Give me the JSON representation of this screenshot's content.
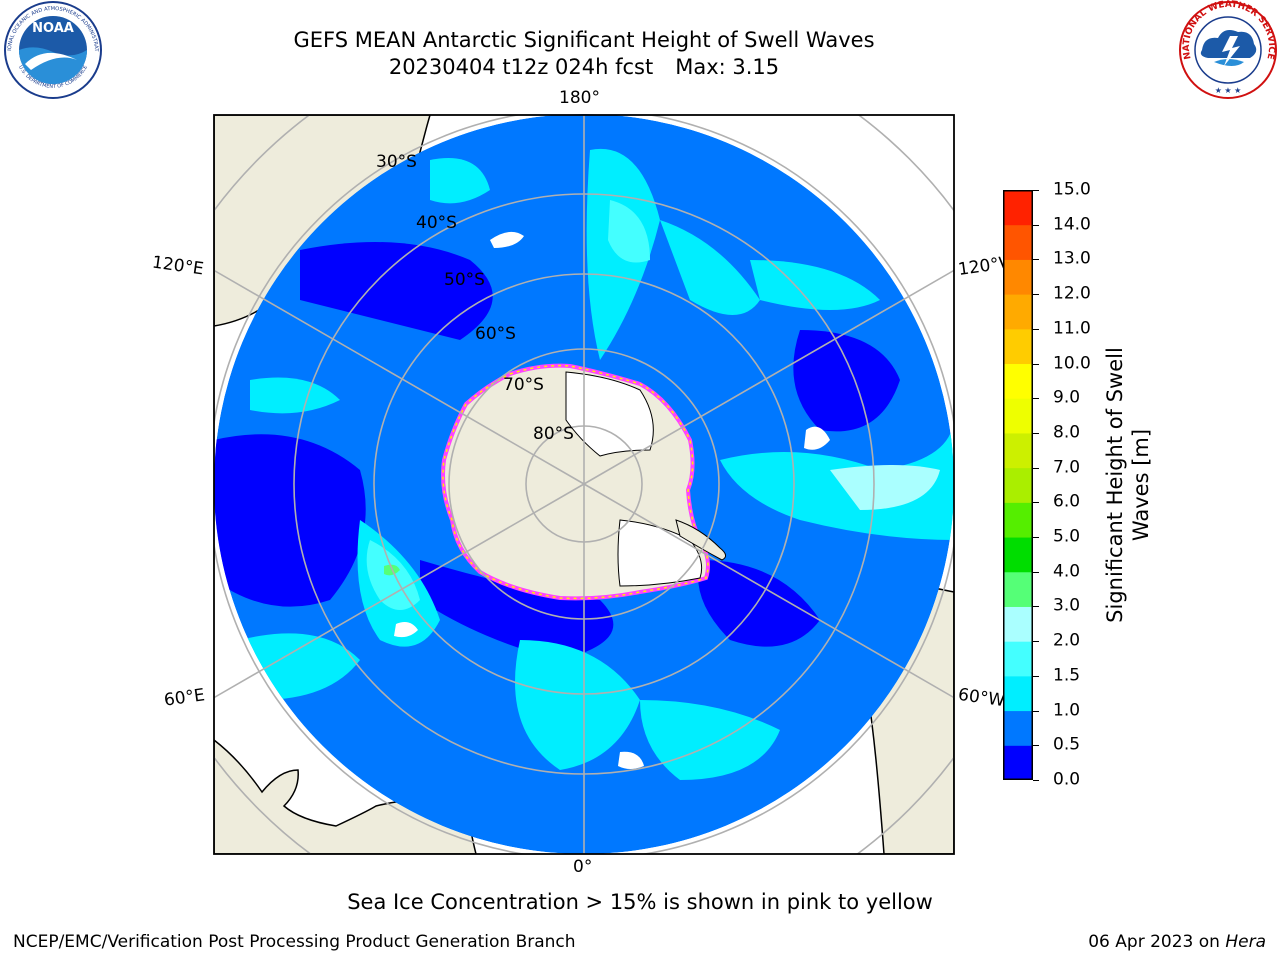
{
  "header": {
    "title_line1": "GEFS MEAN Antarctic Significant Height of Swell Waves",
    "run": "20230404 t12z 024h fcst",
    "max_label": "Max: 3.15"
  },
  "logos": {
    "noaa_text": "NOAA",
    "noaa_ring_text": "NATIONAL OCEANIC AND ATMOSPHERIC ADMINISTRATION",
    "noaa_ring_text_bottom": "U.S. DEPARTMENT OF COMMERCE",
    "nws_ring_text": "NATIONAL WEATHER SERVICE"
  },
  "map": {
    "projection": "south-polar-stereographic",
    "longitude_labels": {
      "top": "180°",
      "bottom": "0°",
      "upper_left": "120°E",
      "upper_right": "120°W",
      "lower_left": "60°E",
      "lower_right": "60°W"
    },
    "latitude_labels": [
      "30°S",
      "40°S",
      "50°S",
      "60°S",
      "70°S",
      "80°S"
    ],
    "colors": {
      "land": "#eeecdc",
      "ice_free_land": "#ffffff",
      "grid": "#b0b0b0",
      "sea_ice_edge": [
        "#ff44ff",
        "#ffee00"
      ]
    }
  },
  "colorbar": {
    "label": "Significant Height of Swell Waves [m]",
    "ticks": [
      "0.0",
      "0.5",
      "1.0",
      "1.5",
      "2.0",
      "3.0",
      "4.0",
      "5.0",
      "6.0",
      "7.0",
      "8.0",
      "9.0",
      "10.0",
      "11.0",
      "12.0",
      "13.0",
      "14.0",
      "15.0"
    ],
    "colors": [
      "#0000ff",
      "#0078ff",
      "#00eeff",
      "#44ffff",
      "#aaffff",
      "#55ff77",
      "#00dd00",
      "#55ee00",
      "#aaee00",
      "#ccf000",
      "#eeff00",
      "#ffff00",
      "#ffcc00",
      "#ffaa00",
      "#ff8800",
      "#ff5500",
      "#ff2200",
      "#ff0000"
    ]
  },
  "chart_data": {
    "type": "heatmap",
    "field": "GEFS mean significant height of swell waves",
    "units": "m",
    "max": 3.15,
    "scale_min": 0.0,
    "scale_max": 15.0,
    "note_sea_ice": "Sea Ice Concentration > 15% is shown in pink to yellow"
  },
  "footer": {
    "caption": "Sea Ice Concentration > 15% is shown in pink to yellow",
    "branch": "NCEP/EMC/Verification Post Processing Product Generation Branch",
    "date": "06 Apr 2023 on ",
    "machine": "Hera"
  }
}
